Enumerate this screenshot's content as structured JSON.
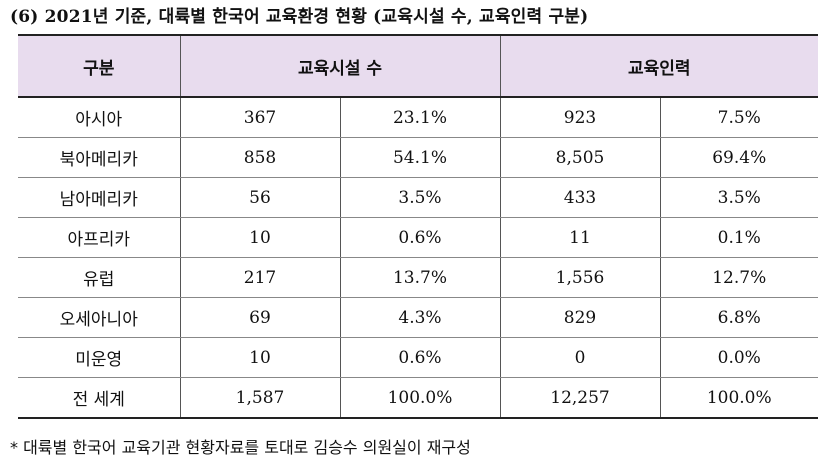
{
  "title": "(6) 2021년 기준, 대륙별 한국어 교육환경 현황 (교육시설 수, 교육인력 구분)",
  "headers": {
    "category": "구분",
    "facilities": "교육시설 수",
    "staff": "교육인력"
  },
  "rows": [
    {
      "region": "아시아",
      "facilities": "367",
      "facilities_pct": "23.1%",
      "staff": "923",
      "staff_pct": "7.5%"
    },
    {
      "region": "북아메리카",
      "facilities": "858",
      "facilities_pct": "54.1%",
      "staff": "8,505",
      "staff_pct": "69.4%"
    },
    {
      "region": "남아메리카",
      "facilities": "56",
      "facilities_pct": "3.5%",
      "staff": "433",
      "staff_pct": "3.5%"
    },
    {
      "region": "아프리카",
      "facilities": "10",
      "facilities_pct": "0.6%",
      "staff": "11",
      "staff_pct": "0.1%"
    },
    {
      "region": "유럽",
      "facilities": "217",
      "facilities_pct": "13.7%",
      "staff": "1,556",
      "staff_pct": "12.7%"
    },
    {
      "region": "오세아니아",
      "facilities": "69",
      "facilities_pct": "4.3%",
      "staff": "829",
      "staff_pct": "6.8%"
    },
    {
      "region": "미운영",
      "facilities": "10",
      "facilities_pct": "0.6%",
      "staff": "0",
      "staff_pct": "0.0%"
    },
    {
      "region": "전 세계",
      "facilities": "1,587",
      "facilities_pct": "100.0%",
      "staff": "12,257",
      "staff_pct": "100.0%"
    }
  ],
  "footnote": "* 대륙별 한국어 교육기관 현황자료를 토대로 김승수 의원실이 재구성"
}
